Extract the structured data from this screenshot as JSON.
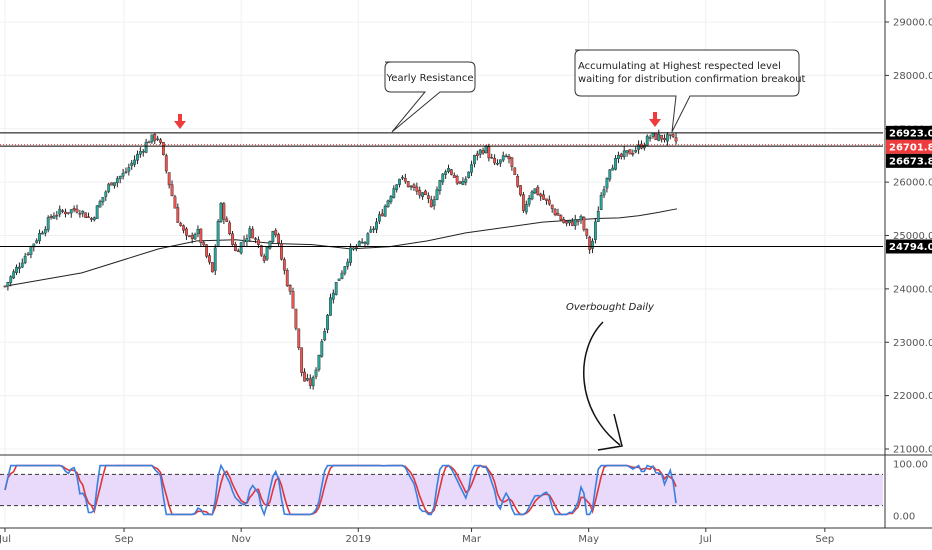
{
  "chart_data": {
    "type": "candlestick",
    "price_axis": {
      "ticks": [
        "29000.0",
        "28000.0",
        "27000.0",
        "26000.0",
        "25000.0",
        "24000.0",
        "23000.0",
        "22000.0",
        "21000.0"
      ],
      "range": [
        20900,
        29400
      ]
    },
    "price_badges": [
      {
        "label": "26923.0",
        "value": 26923,
        "bg": "#000000",
        "fg": "#ffffff"
      },
      {
        "label": "26701.8",
        "value": 26701.8,
        "bg": "#ef3b3b",
        "fg": "#ffffff"
      },
      {
        "label": "26673.8",
        "value": 26673.8,
        "bg": "#000000",
        "fg": "#ffffff"
      },
      {
        "label": "24794.0",
        "value": 24794,
        "bg": "#000000",
        "fg": "#ffffff"
      }
    ],
    "horizontal_levels": [
      {
        "value": 26923,
        "style": "solid",
        "color": "#000000"
      },
      {
        "value": 26701.8,
        "style": "dotted",
        "color": "#ef3b3b"
      },
      {
        "value": 26673.8,
        "style": "solid",
        "color": "#000000"
      },
      {
        "value": 24794,
        "style": "solid",
        "color": "#000000"
      }
    ],
    "x_axis": {
      "labels": [
        "Jul",
        "Sep",
        "Nov",
        "2019",
        "Mar",
        "May",
        "Jul",
        "Sep"
      ],
      "label_days": [
        0,
        62,
        123,
        184,
        243,
        304,
        365,
        427
      ]
    },
    "price_path_days": [
      0,
      10,
      25,
      38,
      45,
      55,
      62,
      75,
      80,
      85,
      90,
      95,
      100,
      108,
      112,
      120,
      128,
      135,
      140,
      145,
      150,
      155,
      160,
      166,
      170,
      175,
      180,
      188,
      196,
      205,
      215,
      222,
      230,
      238,
      245,
      250,
      255,
      262,
      270,
      275,
      285,
      292,
      300,
      305,
      310,
      315,
      322,
      330,
      336,
      340,
      345,
      350
    ],
    "price_path_close": [
      24050,
      24600,
      25400,
      25500,
      25300,
      26000,
      26150,
      26800,
      26850,
      26050,
      25300,
      24900,
      25100,
      24300,
      25600,
      24700,
      25100,
      24600,
      25200,
      24400,
      23700,
      22300,
      22200,
      23200,
      23900,
      24300,
      24700,
      24900,
      25400,
      26100,
      25800,
      25600,
      26300,
      25900,
      26500,
      26650,
      26300,
      26500,
      25500,
      25900,
      25500,
      25200,
      25300,
      24700,
      25700,
      26300,
      26500,
      26650,
      26850,
      26850,
      26820,
      26760
    ],
    "moving_average": {
      "days": [
        0,
        40,
        80,
        100,
        120,
        140,
        160,
        180,
        200,
        220,
        240,
        260,
        280,
        300,
        310,
        320,
        330,
        340,
        350
      ],
      "values": [
        24050,
        24300,
        24750,
        24900,
        24920,
        24850,
        24830,
        24750,
        24790,
        24900,
        25050,
        25150,
        25250,
        25300,
        25320,
        25330,
        25370,
        25430,
        25500
      ]
    },
    "oscillator": {
      "levels": [
        "100.00",
        "0.00"
      ],
      "overbought": 80,
      "oversold": 20,
      "fast_color": "#3a80e0",
      "slow_color": "#e0363a",
      "band_color": "#e9d9fb"
    },
    "annotations": [
      {
        "text": "Yearly Resistance",
        "kind": "callout"
      },
      {
        "text_lines": [
          "Accumulating at Highest respected level",
          "waiting for distribution confirmation breakout"
        ],
        "kind": "callout"
      },
      {
        "text": "Overbought Daily",
        "kind": "note"
      }
    ],
    "colors": {
      "up": "#26a69a",
      "down": "#ef5350",
      "wick": "#222222",
      "marker": "#ef3b3b"
    }
  }
}
